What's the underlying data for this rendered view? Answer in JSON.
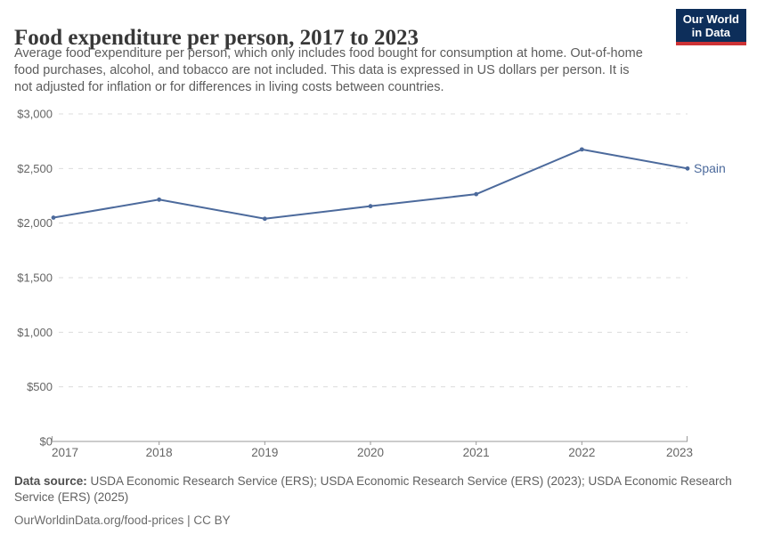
{
  "header": {
    "title": "Food expenditure per person, 2017 to 2023",
    "subtitle_lines": [
      "Average food expenditure per person, which only includes food bought for consumption at home. Out-of-home",
      "food purchases, alcohol, and tobacco are not included. This data is expressed in US dollars per person. It is",
      "not adjusted for inflation or for differences in living costs between countries."
    ],
    "logo": {
      "line1": "Our World",
      "line2": "in Data",
      "bg_color": "#0d2e5a",
      "accent_color": "#cd3235",
      "text_color": "#ffffff"
    }
  },
  "chart_data": {
    "type": "line",
    "title": "Food expenditure per person, 2017 to 2023",
    "x": [
      2017,
      2018,
      2019,
      2020,
      2021,
      2022,
      2023
    ],
    "xtick_labels": [
      "2017",
      "2018",
      "2019",
      "2020",
      "2021",
      "2022",
      "2023"
    ],
    "series": [
      {
        "name": "Spain",
        "color": "#4c6a9c",
        "values": [
          2050,
          2215,
          2040,
          2155,
          2265,
          2675,
          2500
        ]
      }
    ],
    "ylim": [
      0,
      3000
    ],
    "ytick_step": 500,
    "ytick_labels": [
      "$0",
      "$500",
      "$1,000",
      "$1,500",
      "$2,000",
      "$2,500",
      "$3,000"
    ],
    "xlabel": "",
    "ylabel": "",
    "unit": "US dollars per person",
    "grid": "horizontal-dashed",
    "grid_color": "#dcdcdc",
    "axis_color": "#9a9a9a",
    "tick_label_color": "#666666",
    "legend": "end-of-line-label"
  },
  "footer": {
    "data_source_label": "Data source:",
    "data_source_rest": " USDA Economic Research Service (ERS); USDA Economic Research Service (ERS) (2023); USDA Economic Research",
    "source_line2": "Service (ERS) (2025)",
    "link_line": "OurWorldinData.org/food-prices | CC BY"
  }
}
